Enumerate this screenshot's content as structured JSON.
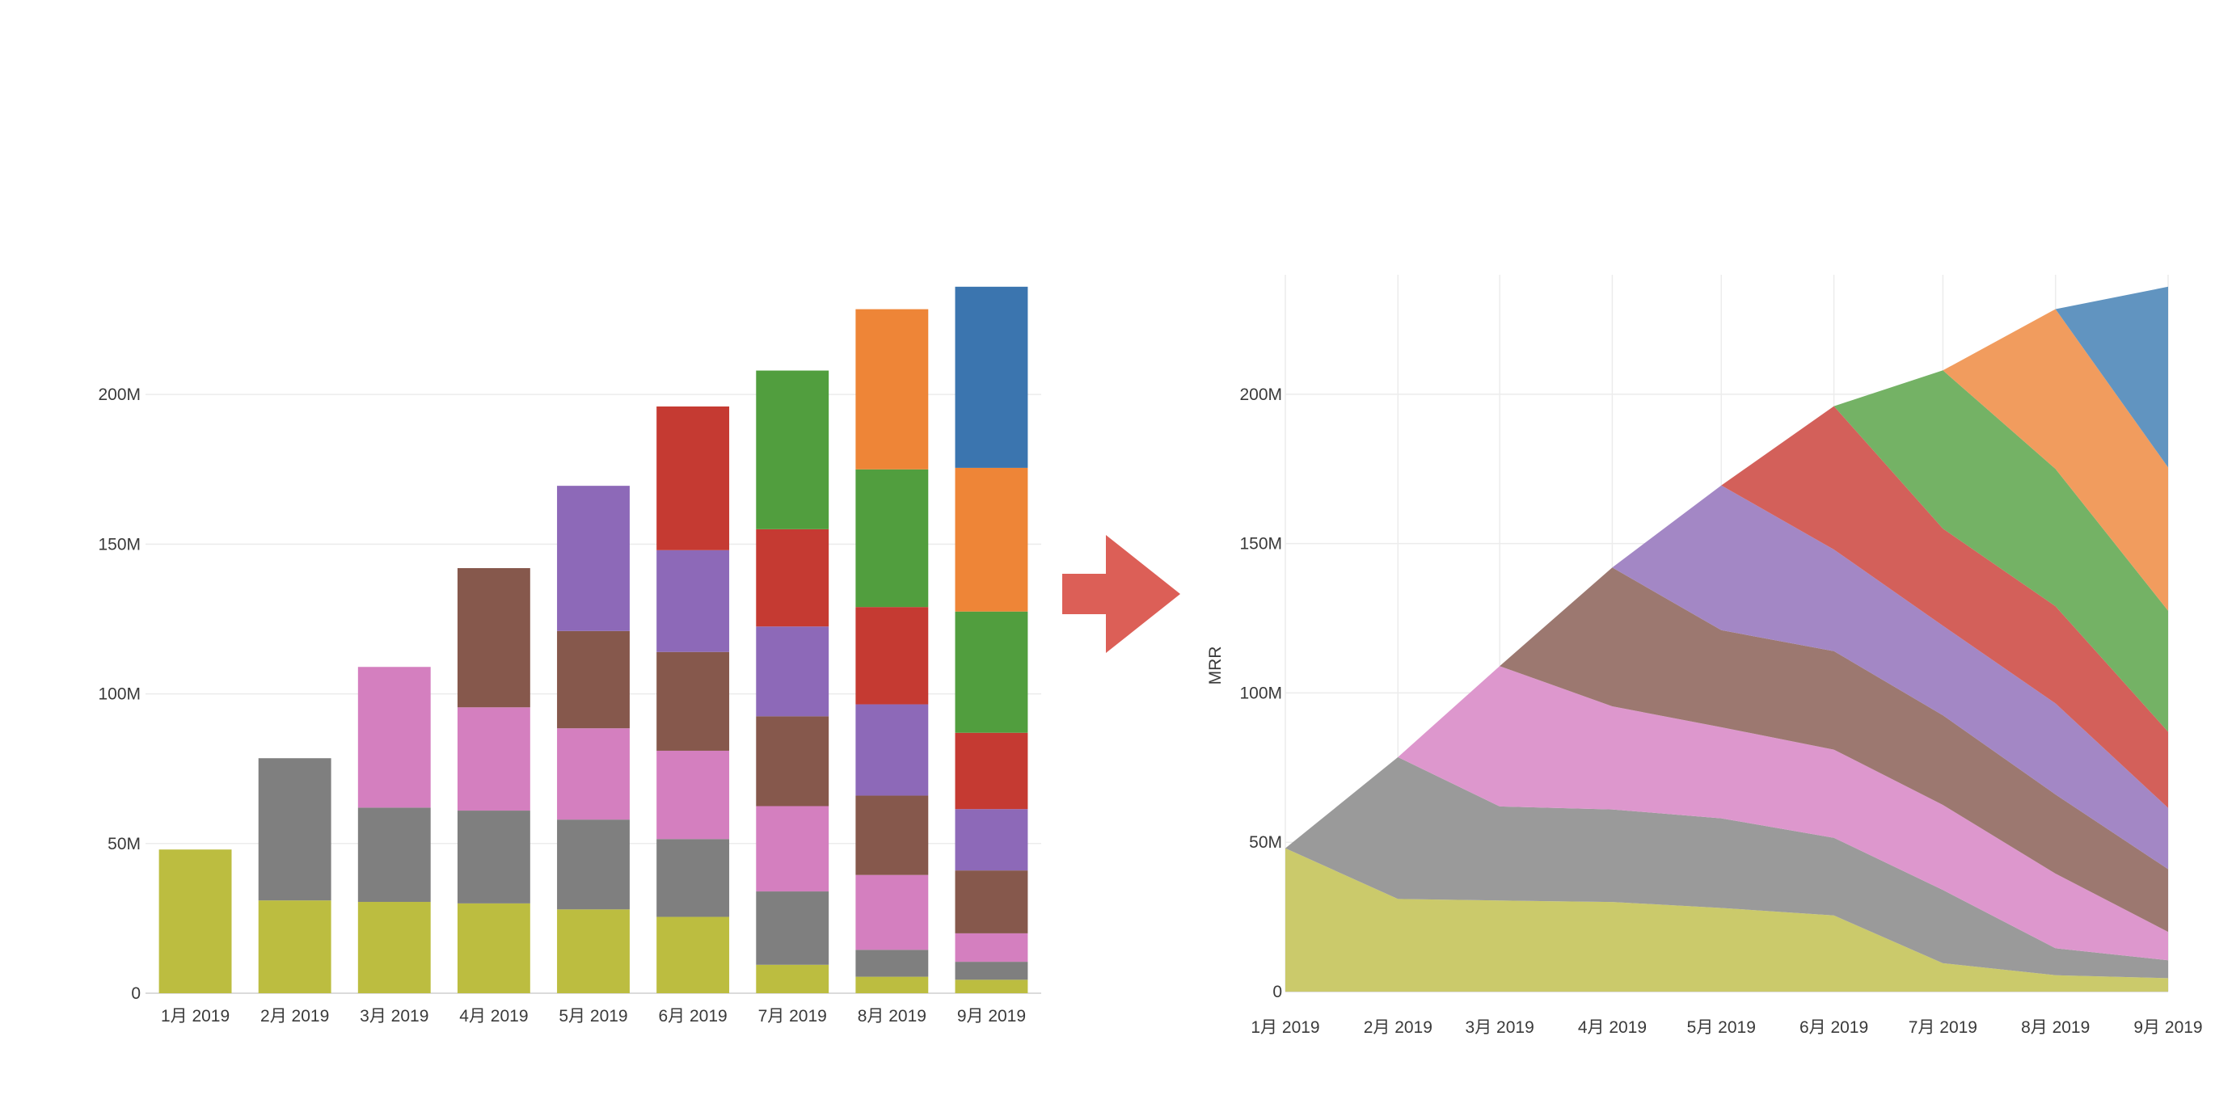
{
  "chart_data": [
    {
      "type": "bar",
      "stacked": true,
      "title": "",
      "xlabel": "",
      "ylabel": "",
      "ylim": [
        0,
        240
      ],
      "y_ticks": [
        0,
        50,
        100,
        150,
        200
      ],
      "y_tick_labels": [
        "0",
        "50M",
        "100M",
        "150M",
        "200M"
      ],
      "grid": "horizontal",
      "legend": "none",
      "categories": [
        "1月 2019",
        "2月 2019",
        "3月 2019",
        "4月 2019",
        "5月 2019",
        "6月 2019",
        "7月 2019",
        "8月 2019",
        "9月 2019"
      ],
      "series": [
        {
          "color": "#bcbd40",
          "values": [
            48,
            31,
            30.5,
            30,
            28,
            25.5,
            9.5,
            5.5,
            4.5
          ]
        },
        {
          "color": "#7f7f7f",
          "values": [
            0,
            47.5,
            31.5,
            31,
            30,
            26,
            24.5,
            9,
            6
          ]
        },
        {
          "color": "#d47fbf",
          "values": [
            0,
            0,
            47,
            34.5,
            30.5,
            29.5,
            28.5,
            25,
            9.5
          ]
        },
        {
          "color": "#86584c",
          "values": [
            0,
            0,
            0,
            46.5,
            32.5,
            33,
            30,
            26.5,
            21
          ]
        },
        {
          "color": "#8d69b8",
          "values": [
            0,
            0,
            0,
            0,
            48.5,
            34,
            30,
            30.5,
            20.5
          ]
        },
        {
          "color": "#c53a32",
          "values": [
            0,
            0,
            0,
            0,
            0,
            48,
            32.5,
            32.5,
            25.5
          ]
        },
        {
          "color": "#519e3e",
          "values": [
            0,
            0,
            0,
            0,
            0,
            0,
            53,
            46,
            40.5
          ]
        },
        {
          "color": "#ee8537",
          "values": [
            0,
            0,
            0,
            0,
            0,
            0,
            0,
            53.5,
            48
          ]
        },
        {
          "color": "#3b75af",
          "values": [
            0,
            0,
            0,
            0,
            0,
            0,
            0,
            0,
            60.5
          ]
        }
      ]
    },
    {
      "type": "area",
      "stacked": true,
      "title": "",
      "xlabel": "",
      "ylabel": "MRR",
      "ylim": [
        0,
        240
      ],
      "y_ticks": [
        0,
        50,
        100,
        150,
        200
      ],
      "y_tick_labels": [
        "0",
        "50M",
        "100M",
        "150M",
        "200M"
      ],
      "grid": "both",
      "legend": "none",
      "x": [
        "2019-01-01",
        "2019-02-01",
        "2019-03-01",
        "2019-04-01",
        "2019-05-01",
        "2019-06-01",
        "2019-07-01",
        "2019-08-01",
        "2019-09-01"
      ],
      "x_tick_labels": [
        "1月 2019",
        "2月 2019",
        "3月 2019",
        "4月 2019",
        "5月 2019",
        "6月 2019",
        "7月 2019",
        "8月 2019",
        "9月 2019"
      ],
      "series": [
        {
          "color": "#cbca6b",
          "values": [
            48,
            31,
            30.5,
            30,
            28,
            25.5,
            9.5,
            5.5,
            4.5
          ]
        },
        {
          "color": "#9a9a9a",
          "values": [
            0,
            47.5,
            31.5,
            31,
            30,
            26,
            24.5,
            9,
            6
          ]
        },
        {
          "color": "#dd97cd",
          "values": [
            0,
            0,
            47,
            34.5,
            30.5,
            29.5,
            28.5,
            25,
            9.5
          ]
        },
        {
          "color": "#9c7870",
          "values": [
            0,
            0,
            0,
            46.5,
            32.5,
            33,
            30,
            26.5,
            21
          ]
        },
        {
          "color": "#a387c5",
          "values": [
            0,
            0,
            0,
            0,
            48.5,
            34,
            30,
            30.5,
            20.5
          ]
        },
        {
          "color": "#d3605a",
          "values": [
            0,
            0,
            0,
            0,
            0,
            48,
            32.5,
            32.5,
            25.5
          ]
        },
        {
          "color": "#74b265",
          "values": [
            0,
            0,
            0,
            0,
            0,
            0,
            53,
            46,
            40.5
          ]
        },
        {
          "color": "#f19c5e",
          "values": [
            0,
            0,
            0,
            0,
            0,
            0,
            0,
            53.5,
            48
          ]
        },
        {
          "color": "#6194c0",
          "values": [
            0,
            0,
            0,
            0,
            0,
            0,
            0,
            0,
            60.5
          ]
        }
      ]
    }
  ],
  "arrow": {
    "color": "#dc5f57"
  }
}
